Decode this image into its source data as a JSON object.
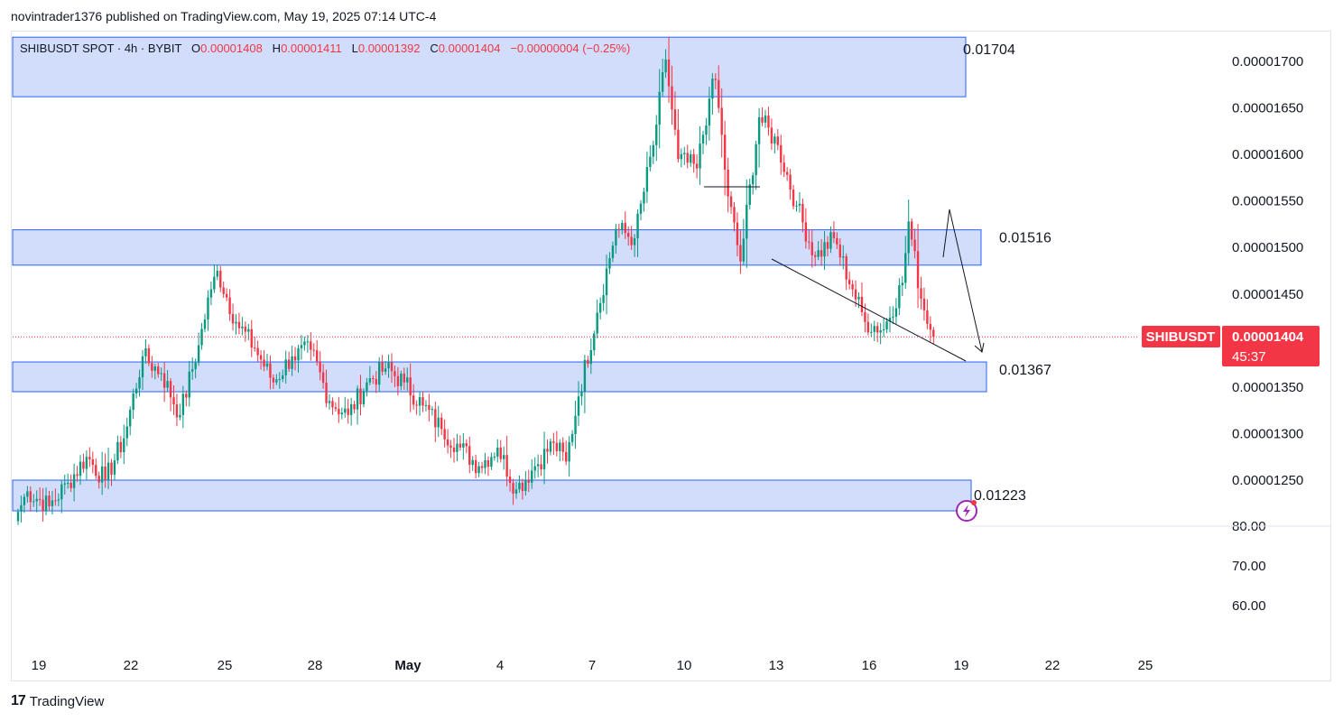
{
  "header": {
    "publisher_line": "novintrader1376 published on TradingView.com, May 19, 2025 07:14 UTC-4"
  },
  "legend": {
    "symbol_line": "SHIBUSDT SPOT · 4h · BYBIT",
    "o_label": "O",
    "o_value": "0.00001408",
    "h_label": "H",
    "h_value": "0.00001411",
    "l_label": "L",
    "l_value": "0.00001392",
    "c_label": "C",
    "c_value": "0.00001404",
    "change": "−0.00000004 (−0.25%)"
  },
  "price_badge": {
    "symbol": "SHIBUSDT",
    "price": "0.00001404",
    "countdown": "45:37",
    "color": "#f23645"
  },
  "footer": {
    "brand": "TradingView"
  },
  "chart_data": {
    "type": "candlestick",
    "colors": {
      "up": "#089981",
      "down": "#f23645",
      "zone_fill": "#d1ddfb",
      "zone_stroke": "#2962ff"
    },
    "y_axis": {
      "tick_labels": [
        "0.00001700",
        "0.00001650",
        "0.00001600",
        "0.00001550",
        "0.00001500",
        "0.00001450",
        "0.00001350",
        "0.00001300",
        "0.00001250"
      ],
      "tick_values": [
        1.7e-05,
        1.65e-05,
        1.6e-05,
        1.55e-05,
        1.5e-05,
        1.45e-05,
        1.35e-05,
        1.3e-05,
        1.25e-05
      ],
      "range": [
        1.2e-05,
        1.73e-05
      ],
      "secondary_labels": [
        "80.00",
        "70.00",
        "60.00"
      ]
    },
    "x_axis": {
      "tick_labels": [
        "19",
        "22",
        "25",
        "28",
        "May",
        "4",
        "7",
        "10",
        "13",
        "16",
        "19",
        "22",
        "25"
      ]
    },
    "zones": [
      {
        "label": "0.01704",
        "top": 1.726e-05,
        "bottom": 1.662e-05
      },
      {
        "label": "0.01516",
        "top": 1.519e-05,
        "bottom": 1.481e-05
      },
      {
        "label": "0.01367",
        "top": 1.377e-05,
        "bottom": 1.345e-05
      },
      {
        "label": "0.01223",
        "top": 1.25e-05,
        "bottom": 1.217e-05
      }
    ],
    "last_close": 1.404e-05,
    "anchors": [
      [
        0,
        1.216e-05
      ],
      [
        3,
        1.238e-05
      ],
      [
        10,
        1.222e-05
      ],
      [
        16,
        1.247e-05
      ],
      [
        22,
        1.275e-05
      ],
      [
        28,
        1.25e-05
      ],
      [
        34,
        1.295e-05
      ],
      [
        40,
        1.383e-05
      ],
      [
        46,
        1.365e-05
      ],
      [
        52,
        1.32e-05
      ],
      [
        58,
        1.395e-05
      ],
      [
        62,
        1.455e-05
      ],
      [
        64,
        1.475e-05
      ],
      [
        70,
        1.42e-05
      ],
      [
        76,
        1.392e-05
      ],
      [
        82,
        1.355e-05
      ],
      [
        88,
        1.383e-05
      ],
      [
        94,
        1.39e-05
      ],
      [
        100,
        1.335e-05
      ],
      [
        106,
        1.32e-05
      ],
      [
        112,
        1.355e-05
      ],
      [
        118,
        1.37e-05
      ],
      [
        124,
        1.355e-05
      ],
      [
        130,
        1.33e-05
      ],
      [
        136,
        1.305e-05
      ],
      [
        142,
        1.285e-05
      ],
      [
        148,
        1.265e-05
      ],
      [
        154,
        1.285e-05
      ],
      [
        160,
        1.24e-05
      ],
      [
        166,
        1.265e-05
      ],
      [
        172,
        1.29e-05
      ],
      [
        176,
        1.27e-05
      ],
      [
        180,
        1.34e-05
      ],
      [
        186,
        1.43e-05
      ],
      [
        192,
        1.52e-05
      ],
      [
        198,
        1.51e-05
      ],
      [
        204,
        1.61e-05
      ],
      [
        208,
        1.702e-05
      ],
      [
        212,
        1.595e-05
      ],
      [
        218,
        1.585e-05
      ],
      [
        222,
        1.66e-05
      ],
      [
        224,
        1.68e-05
      ],
      [
        228,
        1.555e-05
      ],
      [
        232,
        1.485e-05
      ],
      [
        238,
        1.64e-05
      ],
      [
        244,
        1.61e-05
      ],
      [
        250,
        1.545e-05
      ],
      [
        256,
        1.49e-05
      ],
      [
        262,
        1.51e-05
      ],
      [
        268,
        1.455e-05
      ],
      [
        272,
        1.42e-05
      ],
      [
        278,
        1.412e-05
      ],
      [
        284,
        1.462e-05
      ],
      [
        286,
        1.528e-05
      ],
      [
        290,
        1.445e-05
      ],
      [
        294,
        1.404e-05
      ]
    ]
  }
}
